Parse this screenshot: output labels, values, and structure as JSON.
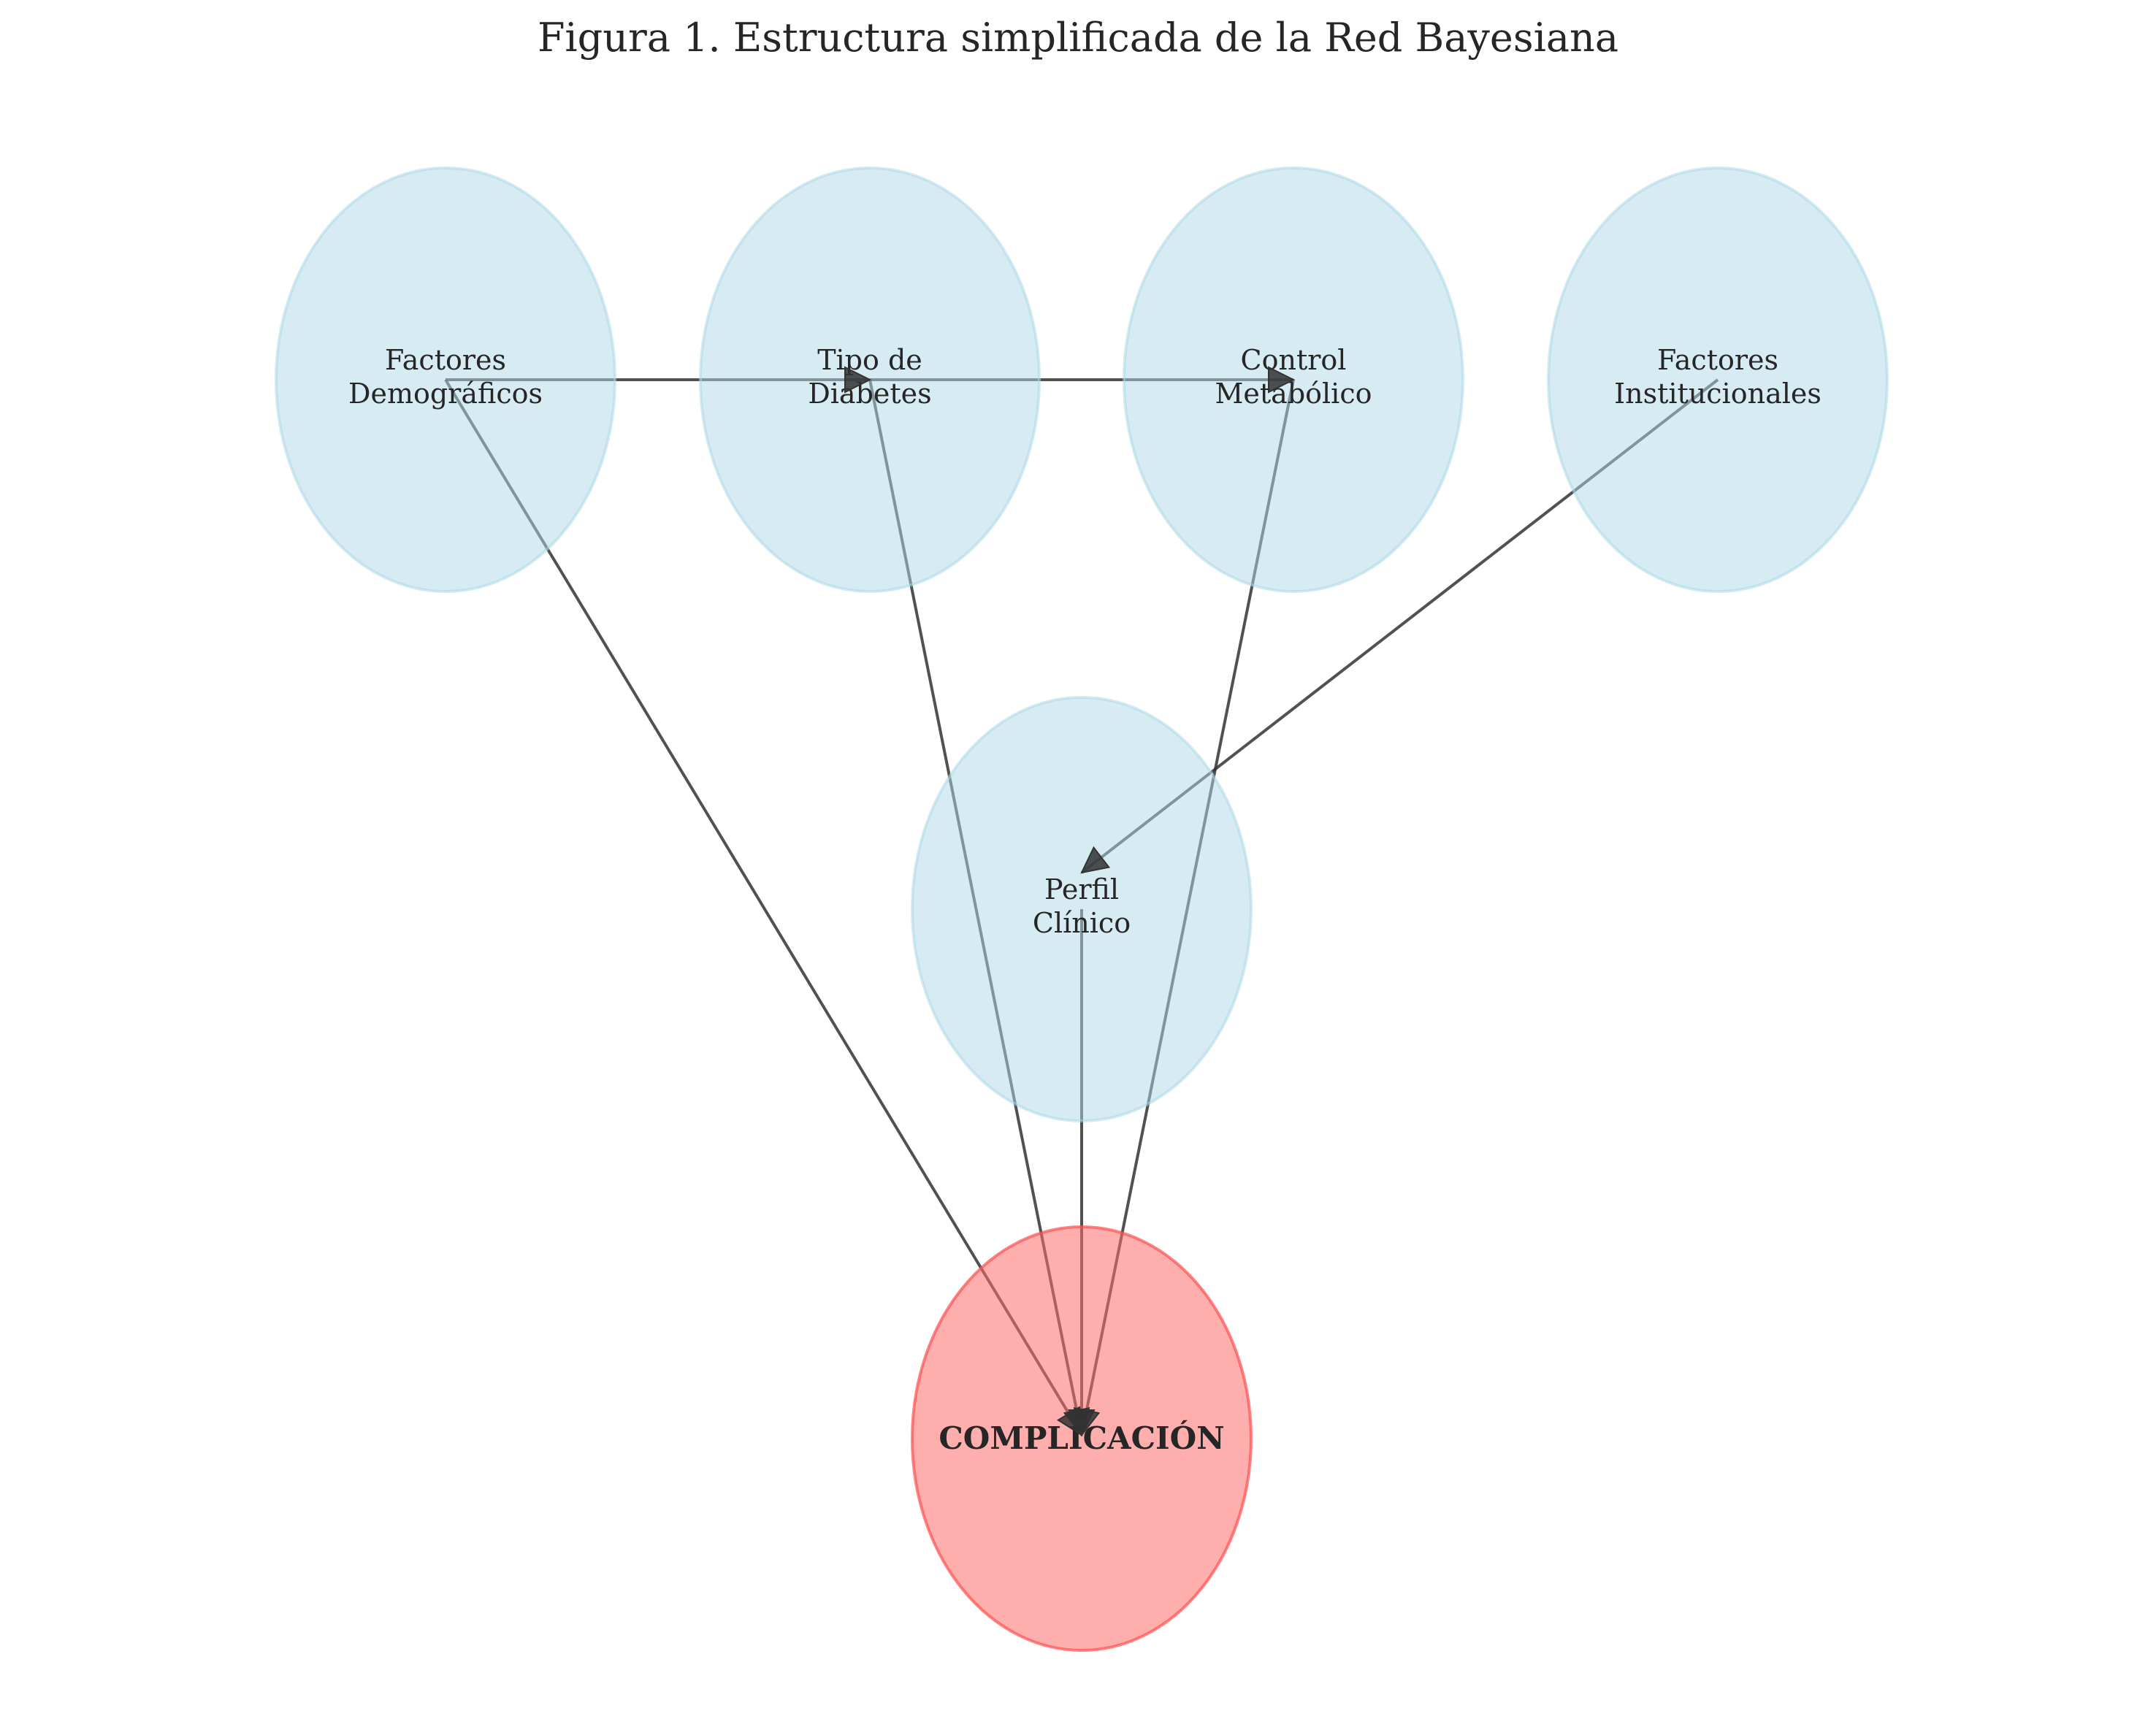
{
  "figure": {
    "title": "Figura 1. Estructura simplificada de la Red Bayesiana"
  },
  "colors": {
    "node_fill": "#add8e6",
    "node_stroke": "#add8e6",
    "target_fill": "#ff6b6b",
    "target_stroke": "#ff4d4d",
    "edge": "#333333"
  },
  "nodes": [
    {
      "id": "demograficos",
      "lines": [
        "Factores",
        "Demográficos"
      ],
      "kind": "factor"
    },
    {
      "id": "tipo",
      "lines": [
        "Tipo de",
        "Diabetes"
      ],
      "kind": "factor"
    },
    {
      "id": "control",
      "lines": [
        "Control",
        "Metabólico"
      ],
      "kind": "factor"
    },
    {
      "id": "institucionales",
      "lines": [
        "Factores",
        "Institucionales"
      ],
      "kind": "factor"
    },
    {
      "id": "perfil",
      "lines": [
        "Perfil",
        "Clínico"
      ],
      "kind": "factor"
    },
    {
      "id": "complicacion",
      "lines": [
        "COMPLICACIÓN"
      ],
      "kind": "target"
    }
  ],
  "edges": [
    {
      "from": "demograficos",
      "to": "tipo"
    },
    {
      "from": "tipo",
      "to": "control"
    },
    {
      "from": "institucionales",
      "to": "perfil"
    },
    {
      "from": "demograficos",
      "to": "complicacion"
    },
    {
      "from": "tipo",
      "to": "complicacion"
    },
    {
      "from": "control",
      "to": "complicacion"
    },
    {
      "from": "perfil",
      "to": "complicacion"
    }
  ]
}
